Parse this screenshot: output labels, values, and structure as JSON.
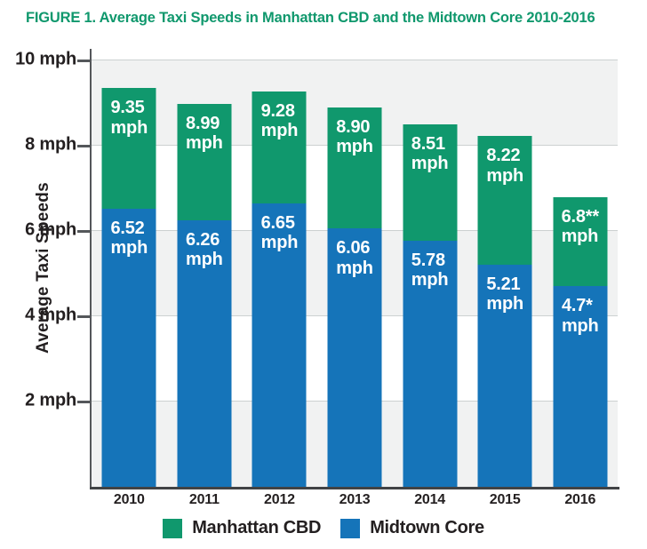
{
  "figure": {
    "title": "FIGURE 1. Average Taxi Speeds in Manhattan CBD and the Midtown Core 2010-2016"
  },
  "chart_data": {
    "type": "bar",
    "bar_style": "overlaid-totals (blue Midtown Core bar in front of green Manhattan CBD total bar)",
    "title": "FIGURE 1. Average Taxi Speeds in Manhattan CBD and the Midtown Core 2010-2016",
    "xlabel": "",
    "ylabel": "Average Taxi Speeds",
    "categories": [
      "2010",
      "2011",
      "2012",
      "2013",
      "2014",
      "2015",
      "2016"
    ],
    "series": [
      {
        "name": "Manhattan CBD",
        "color": "#10986d",
        "values": [
          9.35,
          8.99,
          9.28,
          8.9,
          8.51,
          8.22,
          6.8
        ],
        "display_labels": [
          "9.35",
          "8.99",
          "9.28",
          "8.90",
          "8.51",
          "8.22",
          "6.8**"
        ]
      },
      {
        "name": "Midtown Core",
        "color": "#1574b9",
        "values": [
          6.52,
          6.26,
          6.65,
          6.06,
          5.78,
          5.21,
          4.7
        ],
        "display_labels": [
          "6.52",
          "6.26",
          "6.65",
          "6.06",
          "5.78",
          "5.21",
          "4.7*"
        ]
      }
    ],
    "value_unit_label": "mph",
    "ylim": [
      0,
      10.27
    ],
    "yticks": [
      {
        "value": 2,
        "label": "2 mph"
      },
      {
        "value": 4,
        "label": "4 mph"
      },
      {
        "value": 6,
        "label": "6 mph"
      },
      {
        "value": 8,
        "label": "8 mph"
      },
      {
        "value": 10,
        "label": "10 mph"
      }
    ],
    "grid": true,
    "band_fill_between": [
      [
        8,
        10
      ],
      [
        4,
        6
      ],
      [
        0,
        2
      ]
    ],
    "legend": {
      "position": "bottom",
      "entries": [
        {
          "label": "Manhattan CBD",
          "color": "#10986d"
        },
        {
          "label": "Midtown Core",
          "color": "#1574b9"
        }
      ]
    },
    "colors": {
      "title_text": "#10986d",
      "axis_line": "#54575a",
      "grid_line": "#ccd1d1",
      "band_fill": "#f1f2f2",
      "tick_text": "#231f20",
      "bar_label_text": "#ffffff"
    }
  }
}
